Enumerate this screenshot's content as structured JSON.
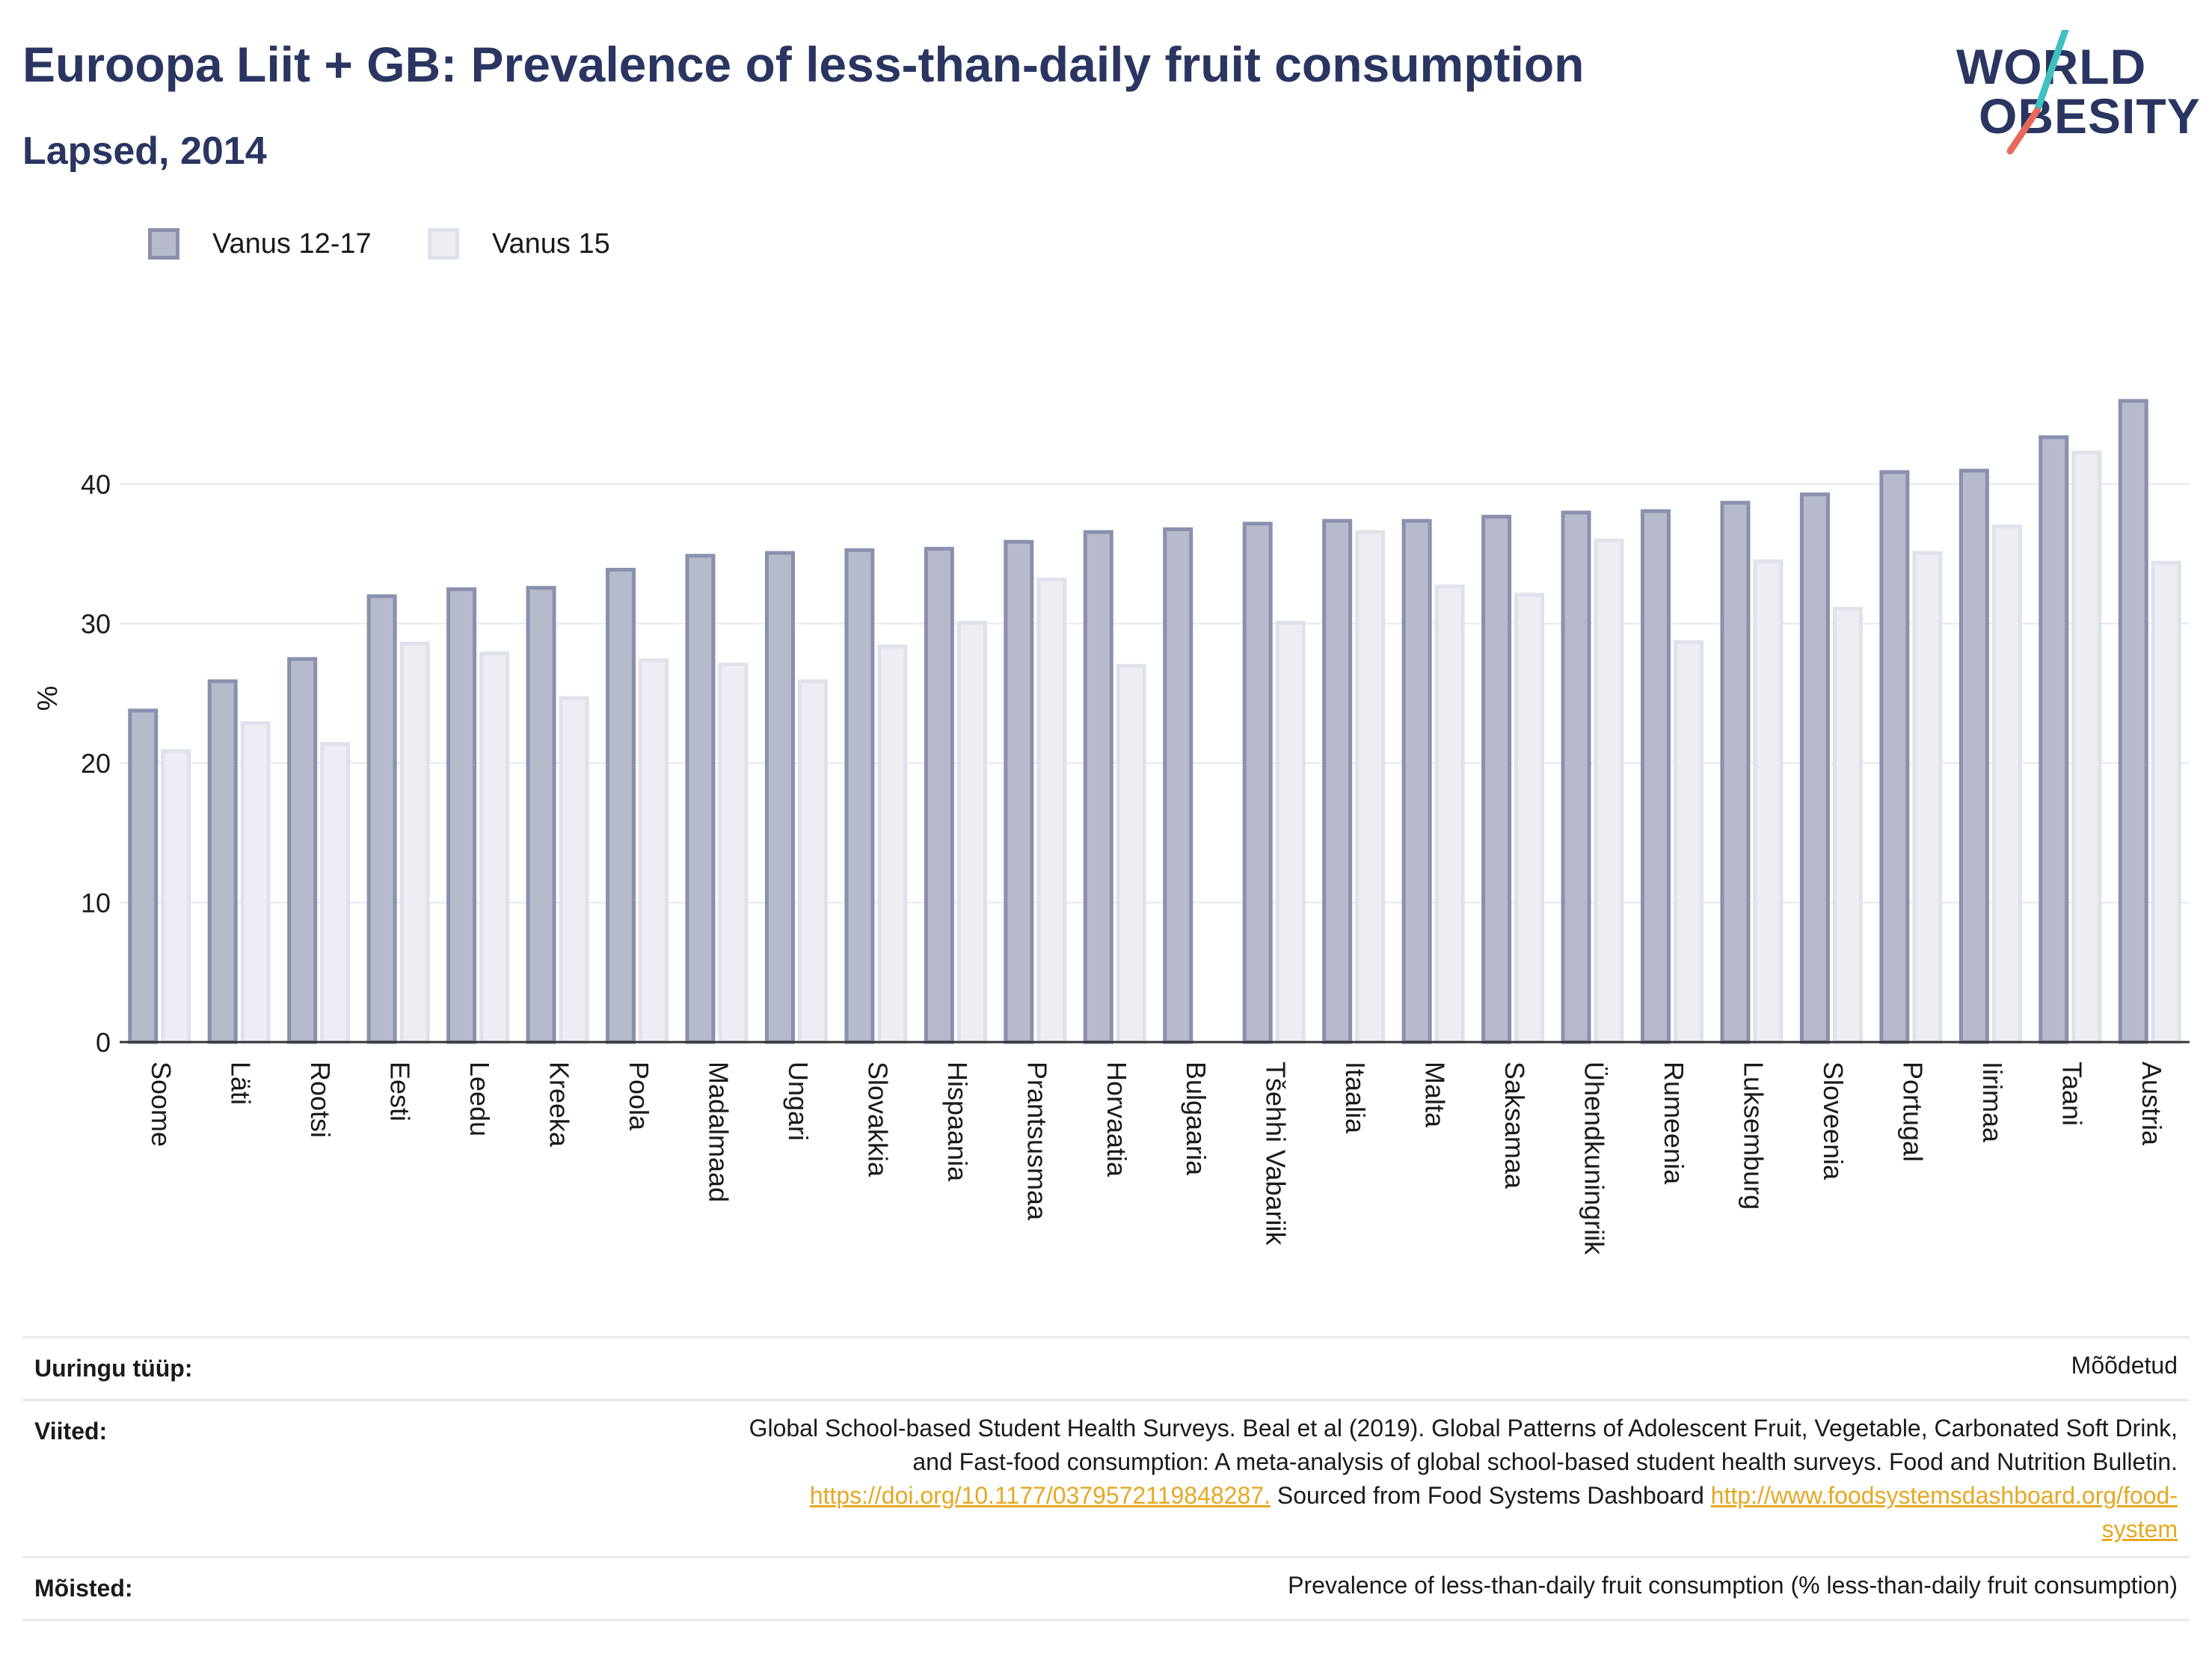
{
  "header": {
    "title": "Euroopa Liit + GB: Prevalence of less-than-daily fruit consumption",
    "subtitle": "Lapsed, 2014"
  },
  "logo": {
    "line1": "WORLD",
    "line2": "OBESITY",
    "accent_teal": "#3fc1c0",
    "accent_red": "#e8685a"
  },
  "colors": {
    "series1_fill": "#b6bacb",
    "series1_stroke": "#8a90ad",
    "series2_fill": "#eceef3",
    "series2_stroke": "#dfe2ea",
    "gridline": "#e6e8ee",
    "axis": "#333333",
    "title": "#2a3561",
    "link": "#e5a823"
  },
  "chart_data": {
    "type": "bar",
    "title": "Euroopa Liit + GB: Prevalence of less-than-daily fruit consumption",
    "subtitle": "Lapsed, 2014",
    "xlabel": "",
    "ylabel": "%",
    "ylim": [
      0,
      49.5
    ],
    "yticks": [
      0,
      10,
      20,
      30,
      40
    ],
    "grid": true,
    "legend_position": "top-left",
    "categories": [
      "Soome",
      "Läti",
      "Rootsi",
      "Eesti",
      "Leedu",
      "Kreeka",
      "Poola",
      "Madalmaad",
      "Ungari",
      "Slovakkia",
      "Hispaania",
      "Prantsusmaa",
      "Horvaatia",
      "Bulgaaria",
      "Tšehhi Vabariik",
      "Itaalia",
      "Malta",
      "Saksamaa",
      "Ühendkuningriik",
      "Rumeenia",
      "Luksemburg",
      "Sloveenia",
      "Portugal",
      "Iirimaa",
      "Taani",
      "Austria"
    ],
    "series": [
      {
        "name": "Vanus 12-17",
        "values": [
          23.9,
          26.0,
          27.6,
          32.1,
          32.6,
          32.7,
          34.0,
          35.0,
          35.2,
          35.4,
          35.5,
          36.0,
          36.7,
          36.9,
          37.3,
          37.5,
          37.5,
          37.8,
          38.1,
          38.2,
          38.8,
          39.4,
          41.0,
          41.1,
          43.5,
          46.1
        ]
      },
      {
        "name": "Vanus 15",
        "values": [
          21.0,
          23.0,
          21.5,
          28.7,
          28.0,
          24.8,
          27.5,
          27.2,
          26.0,
          28.5,
          30.2,
          33.3,
          27.1,
          null,
          30.2,
          36.7,
          32.8,
          32.2,
          36.1,
          28.8,
          34.6,
          31.2,
          35.2,
          37.1,
          42.4,
          34.5
        ]
      }
    ]
  },
  "info": {
    "rows": [
      {
        "key": "Uuringu tüüp:",
        "value_lines": [
          [
            {
              "text": "Mõõdetud"
            }
          ]
        ]
      },
      {
        "key": "Viited:",
        "value_lines": [
          [
            {
              "text": "Global School-based Student Health Surveys. Beal et al (2019). Global Patterns of Adolescent Fruit, Vegetable, Carbonated Soft Drink,"
            }
          ],
          [
            {
              "text": "and Fast-food consumption: A meta-analysis of global school-based student health surveys. Food and Nutrition Bulletin."
            }
          ],
          [
            {
              "text": "https://doi.org/10.1177/0379572119848287.",
              "link": true
            },
            {
              "text": " Sourced from Food Systems Dashboard "
            },
            {
              "text": "http://www.foodsystemsdashboard.org/food-",
              "link": true
            }
          ],
          [
            {
              "text": "system",
              "link": true
            }
          ]
        ]
      },
      {
        "key": "Mõisted:",
        "value_lines": [
          [
            {
              "text": "Prevalence of less-than-daily fruit consumption (% less-than-daily fruit consumption)"
            }
          ]
        ]
      }
    ]
  }
}
